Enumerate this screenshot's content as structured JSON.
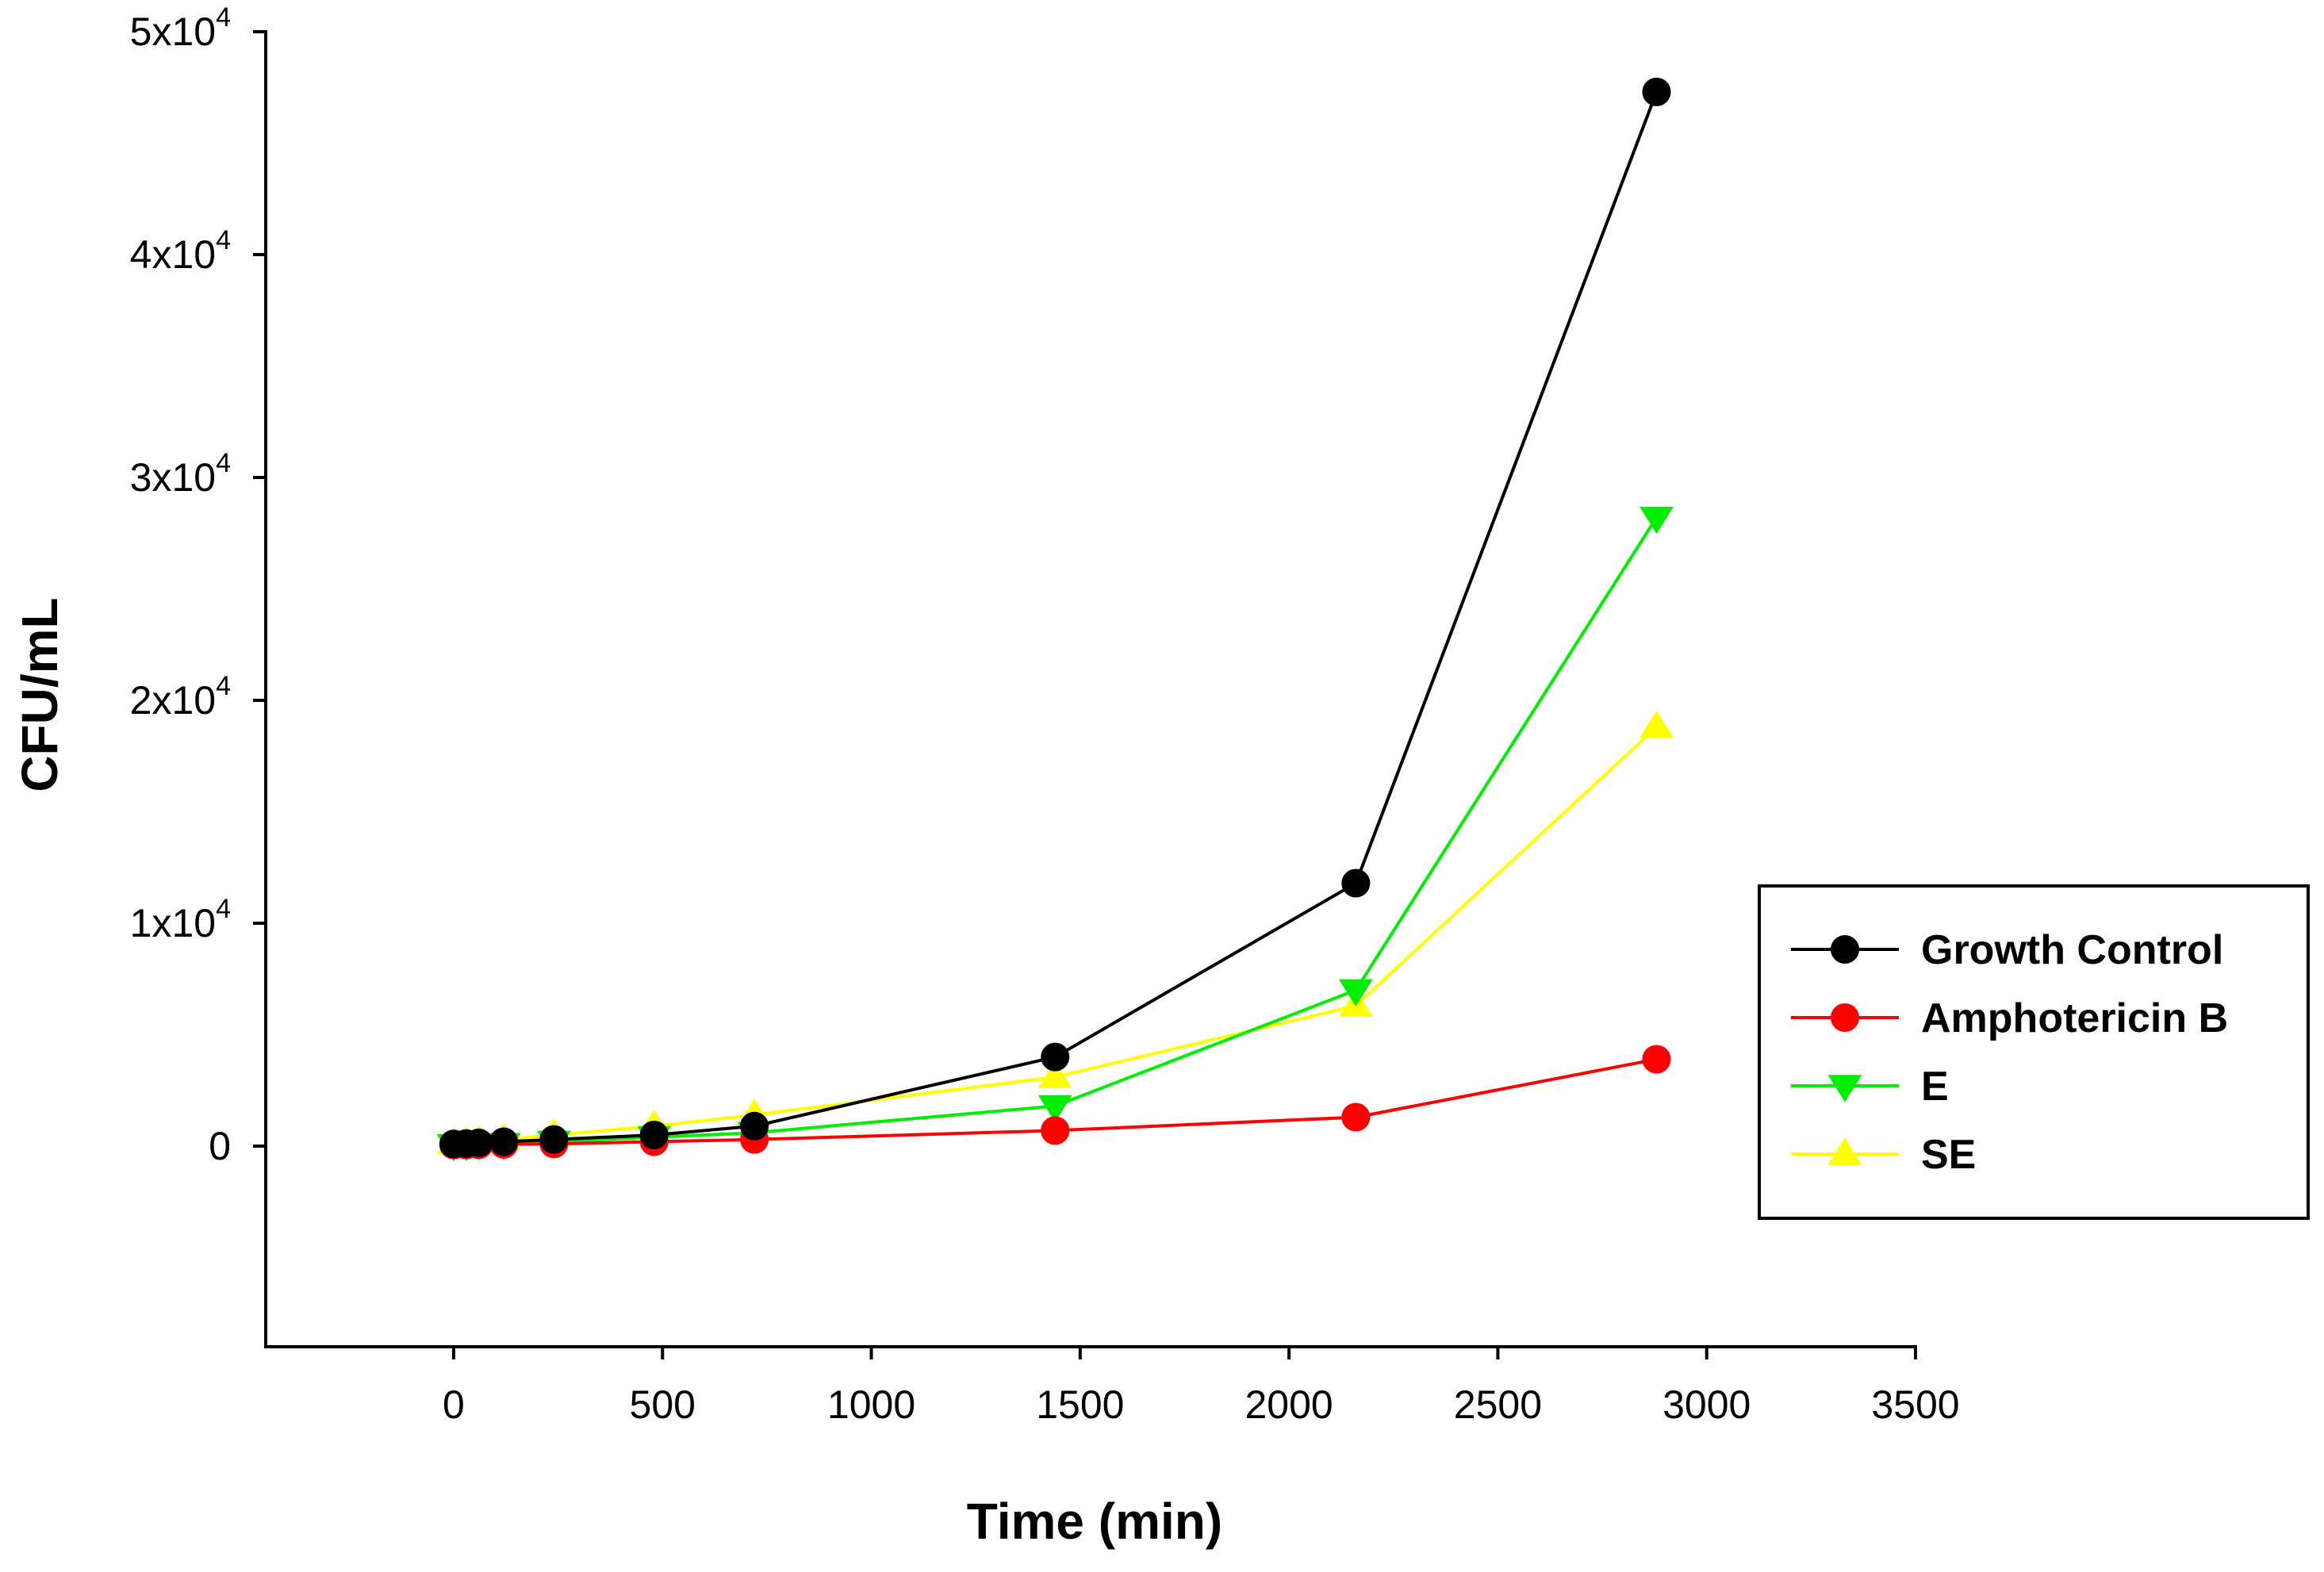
{
  "chart_data": {
    "type": "line",
    "title": "",
    "xlabel": "Time (min)",
    "ylabel": "CFU/mL",
    "xlim": [
      -450,
      3500
    ],
    "ylim": [
      -9000,
      50000
    ],
    "x_ticks": [
      0,
      500,
      1000,
      1500,
      2000,
      2500,
      3000,
      3500
    ],
    "x_tick_labels": [
      "0",
      "500",
      "1000",
      "1500",
      "2000",
      "2500",
      "3000",
      "3500"
    ],
    "y_ticks": [
      {
        "value": 0,
        "base": "0",
        "exp": ""
      },
      {
        "value": 10000,
        "base": "1x10",
        "exp": "4"
      },
      {
        "value": 20000,
        "base": "2x10",
        "exp": "4"
      },
      {
        "value": 30000,
        "base": "3x10",
        "exp": "4"
      },
      {
        "value": 40000,
        "base": "4x10",
        "exp": "4"
      },
      {
        "value": 50000,
        "base": "5x10",
        "exp": "4"
      }
    ],
    "grid": false,
    "legend_position": "right",
    "x": [
      0,
      30,
      60,
      120,
      240,
      480,
      720,
      1440,
      2160,
      2880
    ],
    "series": [
      {
        "name": "Growth Control",
        "color": "#000000",
        "marker": "circle",
        "values": [
          100,
          120,
          150,
          200,
          300,
          500,
          900,
          4000,
          11800,
          47300
        ]
      },
      {
        "name": "Amphotericin B",
        "color": "#ff0000",
        "marker": "circle",
        "values": [
          50,
          50,
          60,
          80,
          100,
          200,
          300,
          700,
          1300,
          3900
        ]
      },
      {
        "name": "E",
        "color": "#00ee00",
        "marker": "triangle-down",
        "values": [
          50,
          60,
          80,
          100,
          200,
          400,
          600,
          1800,
          7000,
          28200
        ]
      },
      {
        "name": "SE",
        "color": "#ffff00",
        "marker": "triangle-up",
        "values": [
          100,
          150,
          200,
          300,
          500,
          900,
          1400,
          3100,
          6300,
          18800
        ]
      }
    ]
  }
}
